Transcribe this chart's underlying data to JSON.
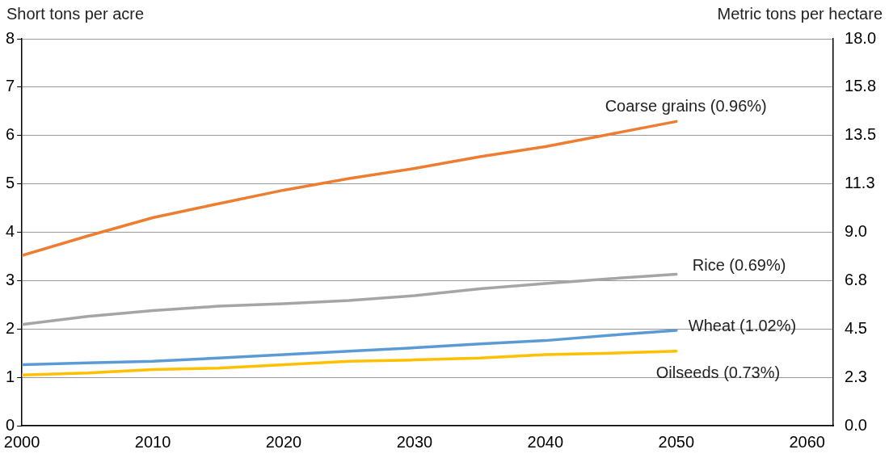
{
  "chart_data": {
    "type": "line",
    "ylabel": "Short tons per acre",
    "y2label": "Metric tons per hectare",
    "x": [
      2000,
      2005,
      2010,
      2015,
      2020,
      2025,
      2030,
      2035,
      2040,
      2045,
      2050
    ],
    "xlim": [
      2000,
      2062
    ],
    "xticks": [
      2000,
      2010,
      2020,
      2030,
      2040,
      2050,
      2060
    ],
    "ylim": [
      0,
      8
    ],
    "yticks": [
      0,
      1,
      2,
      3,
      4,
      5,
      6,
      7,
      8
    ],
    "y2lim": [
      0,
      18
    ],
    "y2ticks": [
      {
        "value": 0,
        "label": "0.0"
      },
      {
        "value": 2.25,
        "label": "2.3"
      },
      {
        "value": 4.5,
        "label": "4.5"
      },
      {
        "value": 6.75,
        "label": "6.8"
      },
      {
        "value": 9,
        "label": "9.0"
      },
      {
        "value": 11.25,
        "label": "11.3"
      },
      {
        "value": 13.5,
        "label": "13.5"
      },
      {
        "value": 15.75,
        "label": "15.8"
      },
      {
        "value": 18,
        "label": "18.0"
      }
    ],
    "grid": "y",
    "legend": false,
    "marker": "none",
    "line_style": "solid",
    "series": [
      {
        "name": "Coarse grains (0.96%)",
        "color": "#ed7d31",
        "values": [
          3.52,
          3.92,
          4.3,
          4.59,
          4.87,
          5.11,
          5.32,
          5.56,
          5.77,
          6.03,
          6.29
        ]
      },
      {
        "name": "Rice (0.69%)",
        "color": "#a5a5a5",
        "values": [
          2.09,
          2.26,
          2.38,
          2.47,
          2.52,
          2.59,
          2.69,
          2.83,
          2.94,
          3.04,
          3.13
        ]
      },
      {
        "name": "Wheat (1.02%)",
        "color": "#5b9bd5",
        "values": [
          1.26,
          1.3,
          1.33,
          1.4,
          1.47,
          1.54,
          1.61,
          1.69,
          1.76,
          1.87,
          1.97
        ]
      },
      {
        "name": "Oilseeds (0.73%)",
        "color": "#ffc000",
        "values": [
          1.05,
          1.09,
          1.16,
          1.19,
          1.26,
          1.33,
          1.36,
          1.4,
          1.47,
          1.5,
          1.54
        ]
      }
    ]
  }
}
